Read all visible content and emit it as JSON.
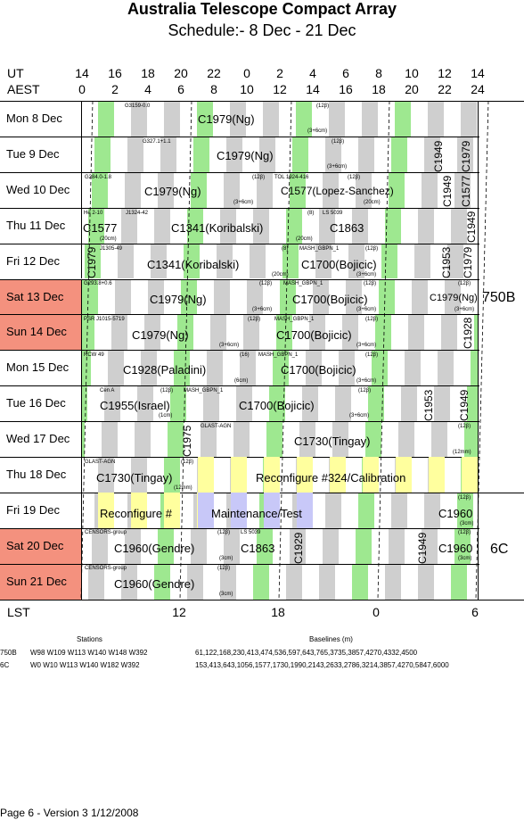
{
  "header": {
    "title": "Australia Telescope Compact Array",
    "subtitle": "Schedule:- 8  Dec - 21 Dec"
  },
  "axes": {
    "ut_label": "UT",
    "aest_label": "AEST",
    "ut_ticks": [
      "14",
      "16",
      "18",
      "20",
      "22",
      "0",
      "2",
      "4",
      "6",
      "8",
      "10",
      "12",
      "14"
    ],
    "aest_ticks": [
      "0",
      "2",
      "4",
      "6",
      "8",
      "10",
      "12",
      "14",
      "16",
      "18",
      "20",
      "22",
      "24"
    ],
    "lst_label": "LST",
    "lst_ticks": [
      "12",
      "18",
      "0",
      "6"
    ]
  },
  "days": [
    {
      "label": "Mon   8  Dec",
      "weekend": false
    },
    {
      "label": "Tue   9  Dec",
      "weekend": false
    },
    {
      "label": "Wed  10  Dec",
      "weekend": false
    },
    {
      "label": "Thu   11  Dec",
      "weekend": false
    },
    {
      "label": "Fri    12  Dec",
      "weekend": false
    },
    {
      "label": "Sat   13  Dec",
      "weekend": true
    },
    {
      "label": "Sun   14  Dec",
      "weekend": true
    },
    {
      "label": "Mon  15  Dec",
      "weekend": false
    },
    {
      "label": "Tue   16  Dec",
      "weekend": false
    },
    {
      "label": "Wed  17  Dec",
      "weekend": false
    },
    {
      "label": "Thu   18  Dec",
      "weekend": false
    },
    {
      "label": "Fri    19  Dec",
      "weekend": false
    },
    {
      "label": "Sat   20  Dec",
      "weekend": true
    },
    {
      "label": "Sun   21  Dec",
      "weekend": true
    }
  ],
  "configs": [
    "750B",
    "6C"
  ],
  "blocks": {
    "b1": "C1979(Ng)",
    "b1s": "G3159-0.0",
    "b1t": "(12β)",
    "b1c": "(3+6cm)",
    "b2": "C1979(Ng)",
    "b2s": "G327.1+1.1",
    "b2t": "(12β)",
    "b2c": "(3+6cm)",
    "b3": "C1979(Ng)",
    "b3s": "G284.0-1.8",
    "b3t": "(12β)",
    "b3c": "(3+6cm)",
    "b4": "C1577(Lopez-Sanchez)",
    "b4s": "TOL 1924-416",
    "b4t": "(12β)",
    "b4c": "(20cm)",
    "b5": "C1577",
    "b5s": "He 2-10",
    "b5c": "(20cm)",
    "b6": "C1341(Koribalski)",
    "b6s": "J1324-42",
    "b7": "C1863",
    "b7s": "LS 5039",
    "b7t": "(8)",
    "b7c": "(20cm)",
    "b8": "C1341(Koribalski)",
    "b8s": "J1305-49",
    "b8t": "(8)",
    "b8c": "(20cm)",
    "b9": "C1700(Bojicic)",
    "b9s": "MASH_GBPN_1",
    "b9t": "(12β)",
    "b9c": "(3+6cm)",
    "b10": "C1979(Ng)",
    "b10s": "G293.8+0.6",
    "b10t": "(12β)",
    "b10c": "(3+6cm)",
    "b11": "C1700(Bojicic)",
    "b11s": "MASH_GBPN_1",
    "b11t": "(12β)",
    "b11c": "(3+6cm)",
    "b12": "C1979(Ng)",
    "b12t": "(12β)",
    "b12c": "(3+6cm)",
    "b13": "C1979(Ng)",
    "b13s": "PSR J1015-5719",
    "b13t": "(12β)",
    "b13c": "(3+6cm)",
    "b14": "C1700(Bojicic)",
    "b14s": "MASH_GBPN_1",
    "b14t": "(12β)",
    "b14c": "(3+6cm)",
    "b15": "C1928(Paladini)",
    "b15s": "RCW 49",
    "b15t": "(16)",
    "b15c": "(6cm)",
    "b16": "C1700(Bojicic)",
    "b16s": "MASH_GBPN_1",
    "b16t": "(12β)",
    "b16c": "(3+6cm)",
    "b17": "C1955(Israel)",
    "b17s": "Cen A",
    "b17t": "(12β)",
    "b17c": "(1cm)",
    "b18": "C1700(Bojicic)",
    "b18s": "MASH_GBPN_1",
    "b18t": "(12β)",
    "b18c": "(3+6cm)",
    "b19": "C1730(Tingay)",
    "b19s": "GLAST-AGN",
    "b19t": "(12β)",
    "b19c": "(12mm)",
    "b20": "C1730(Tingay)",
    "b20s": "GLAST-AGN",
    "b20t": "(12β)",
    "b20c": "(12mm)",
    "b21": "Reconfigure #324/Calibration",
    "b22": "Reconfigure #",
    "b23": "Maintenance/Test",
    "b24": "C1960",
    "b24t": "(12β)",
    "b24c": "(3cm)",
    "b25": "C1960(Gendre)",
    "b25s": "CENSORS-group",
    "b25t": "(12β)",
    "b25c": "(3cm)",
    "b26": "C1863",
    "b26s": "LS 5039",
    "b27": "C1960",
    "b27t": "(12β)",
    "b27c": "(3cm)",
    "b28": "C1960(Gendre)",
    "b28s": "CENSORS-group",
    "b28t": "(12β)",
    "b28c": "(3cm)",
    "v1": "C1949",
    "v2": "C1979",
    "v3": "C1949",
    "v4": "C1577",
    "v5": "C1949",
    "v6": "C1979",
    "v7": "C1949",
    "v8": "C1953",
    "v9": "C1979",
    "v10": "C1928",
    "v11": "C1953",
    "v12": "C1949",
    "v13": "C1975",
    "v14": "C1929",
    "v15": "C1949"
  },
  "footer": {
    "stations_title": "Stations",
    "baselines_title": "Baselines (m)",
    "rows": [
      {
        "cfg": "750B",
        "stations": "W98 W109 W113 W140 W148 W392",
        "baselines": "61,122,168,230,413,474,536,597,643,765,3735,3857,4270,4332,4500"
      },
      {
        "cfg": "6C",
        "stations": "W0 W10 W113 W140 W182 W392",
        "baselines": "153,413,643,1056,1577,1730,1990,2143,2633,2786,3214,3857,4270,5847,6000"
      }
    ],
    "page": "Page 6 - Version 3  1/12/2008"
  },
  "colors": {
    "weekend": "#f4917e",
    "gray": "#cfcfcf",
    "green": "#9ee890",
    "yellow": "#ffff9e",
    "lavender": "#c8c8f8"
  }
}
